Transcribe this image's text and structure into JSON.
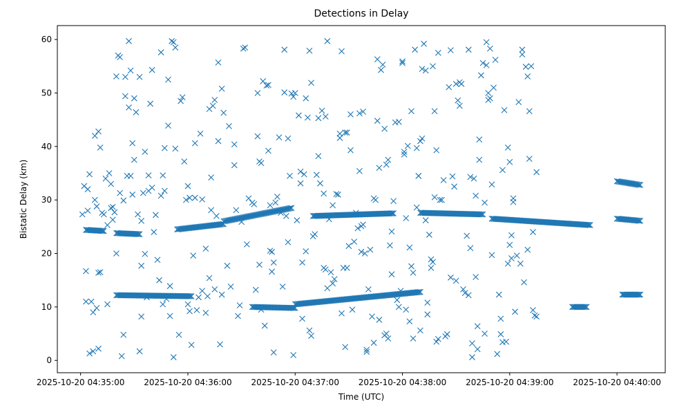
{
  "chart_data": {
    "type": "scatter",
    "title": "Detections in Delay",
    "xlabel": "Time (UTC)",
    "ylabel": "Bistatic Delay (km)",
    "x_unit": "seconds after 2025-10-20 04:35:00 UTC",
    "x_ticks": [
      {
        "value": 0,
        "label": "2025-10-20 04:35:00"
      },
      {
        "value": 60,
        "label": "2025-10-20 04:36:00"
      },
      {
        "value": 120,
        "label": "2025-10-20 04:37:00"
      },
      {
        "value": 180,
        "label": "2025-10-20 04:38:00"
      },
      {
        "value": 240,
        "label": "2025-10-20 04:39:00"
      },
      {
        "value": 300,
        "label": "2025-10-20 04:40:00"
      }
    ],
    "y_ticks": [
      0,
      10,
      20,
      30,
      40,
      50,
      60
    ],
    "xlim": [
      -13,
      327
    ],
    "ylim": [
      -2.3,
      62.6
    ],
    "grid": false,
    "marker": "x",
    "color": "#1f77b4",
    "series_bands": {
      "band_a": {
        "x_start": 3,
        "x_end": 13,
        "y_start": 24.4,
        "y_end": 24.2
      },
      "band_b": {
        "x_start": 20,
        "x_end": 33,
        "y_start": 23.8,
        "y_end": 23.6
      },
      "band_c": {
        "x_start": 20,
        "x_end": 62,
        "y_start": 12.2,
        "y_end": 12.0
      },
      "band_d": {
        "x_start": 54,
        "x_end": 80,
        "y_start": 24.5,
        "y_end": 25.5
      },
      "band_e": {
        "x_start": 80,
        "x_end": 118,
        "y_start": 26.0,
        "y_end": 28.5
      },
      "band_f": {
        "x_start": 96,
        "x_end": 120,
        "y_start": 10.0,
        "y_end": 9.8
      },
      "band_g": {
        "x_start": 120,
        "x_end": 190,
        "y_start": 10.5,
        "y_end": 12.8
      },
      "band_h": {
        "x_start": 130,
        "x_end": 175,
        "y_start": 27.0,
        "y_end": 27.5
      },
      "band_i": {
        "x_start": 190,
        "x_end": 225,
        "y_start": 27.6,
        "y_end": 27.3
      },
      "band_j": {
        "x_start": 230,
        "x_end": 285,
        "y_start": 26.5,
        "y_end": 25.3
      },
      "band_k": {
        "x_start": 275,
        "x_end": 283,
        "y_start": 10.0,
        "y_end": 10.0
      },
      "band_l": {
        "x_start": 300,
        "x_end": 313,
        "y_start": 26.5,
        "y_end": 26.1
      },
      "band_m": {
        "x_start": 303,
        "x_end": 313,
        "y_start": 12.3,
        "y_end": 12.3
      },
      "band_n": {
        "x_start": 300,
        "x_end": 313,
        "y_start": 33.5,
        "y_end": 32.8
      }
    },
    "points": [
      [
        1,
        27.3
      ],
      [
        2,
        32.6
      ],
      [
        3,
        16.7
      ],
      [
        3,
        11.0
      ],
      [
        4,
        28.0
      ],
      [
        4,
        32.0
      ],
      [
        5,
        34.8
      ],
      [
        5,
        1.3
      ],
      [
        6,
        11.0
      ],
      [
        7,
        1.7
      ],
      [
        7,
        9.0
      ],
      [
        8,
        42.0
      ],
      [
        8,
        30.0
      ],
      [
        9,
        9.8
      ],
      [
        9,
        28.8
      ],
      [
        10,
        42.8
      ],
      [
        10,
        2.2
      ],
      [
        10,
        16.4
      ],
      [
        11,
        16.5
      ],
      [
        11,
        39.8
      ],
      [
        12,
        27.6
      ],
      [
        13,
        27.3
      ],
      [
        14,
        34.0
      ],
      [
        15,
        25.3
      ],
      [
        15,
        10.5
      ],
      [
        16,
        35.0
      ],
      [
        17,
        33.0
      ],
      [
        17,
        28.5
      ],
      [
        18,
        26.3
      ],
      [
        18,
        28.7
      ],
      [
        19,
        27.7
      ],
      [
        20,
        20.0
      ],
      [
        20,
        53.1
      ],
      [
        21,
        57.0
      ],
      [
        22,
        56.7
      ],
      [
        22,
        31.3
      ],
      [
        23,
        0.8
      ],
      [
        24,
        29.9
      ],
      [
        24,
        4.8
      ],
      [
        25,
        53.0
      ],
      [
        25,
        49.4
      ],
      [
        26,
        34.5
      ],
      [
        27,
        59.7
      ],
      [
        27,
        47.3
      ],
      [
        28,
        34.5
      ],
      [
        28,
        54.2
      ],
      [
        29,
        40.6
      ],
      [
        29,
        31.0
      ],
      [
        30,
        37.5
      ],
      [
        30,
        49.0
      ],
      [
        31,
        46.4
      ],
      [
        32,
        27.3
      ],
      [
        33,
        1.7
      ],
      [
        33,
        53.0
      ],
      [
        34,
        17.7
      ],
      [
        34,
        26.1
      ],
      [
        34,
        8.2
      ],
      [
        35,
        31.3
      ],
      [
        36,
        39.0
      ],
      [
        36,
        19.9
      ],
      [
        37,
        11.8
      ],
      [
        38,
        34.6
      ],
      [
        38,
        31.7
      ],
      [
        39,
        48.0
      ],
      [
        40,
        54.3
      ],
      [
        40,
        32.3
      ],
      [
        41,
        24.0
      ],
      [
        42,
        27.2
      ],
      [
        43,
        18.8
      ],
      [
        44,
        15.0
      ],
      [
        45,
        30.8
      ],
      [
        45,
        57.6
      ],
      [
        46,
        10.5
      ],
      [
        46,
        34.6
      ],
      [
        47,
        39.7
      ],
      [
        47,
        31.7
      ],
      [
        48,
        11.5
      ],
      [
        49,
        52.5
      ],
      [
        49,
        43.9
      ],
      [
        50,
        13.9
      ],
      [
        50,
        8.3
      ],
      [
        51,
        59.7
      ],
      [
        52,
        59.5
      ],
      [
        52,
        0.6
      ],
      [
        53,
        58.5
      ],
      [
        53,
        39.6
      ],
      [
        55,
        4.8
      ],
      [
        56,
        48.5
      ],
      [
        57,
        49.2
      ],
      [
        58,
        37.2
      ],
      [
        59,
        30.0
      ],
      [
        60,
        32.6
      ],
      [
        60,
        10.5
      ],
      [
        61,
        9.2
      ],
      [
        61,
        30.4
      ],
      [
        62,
        2.9
      ],
      [
        63,
        19.6
      ],
      [
        64,
        40.6
      ],
      [
        64,
        30.4
      ],
      [
        65,
        9.4
      ],
      [
        66,
        11.8
      ],
      [
        67,
        42.4
      ],
      [
        68,
        30.1
      ],
      [
        68,
        13.0
      ],
      [
        70,
        8.9
      ],
      [
        70,
        20.9
      ],
      [
        71,
        12.0
      ],
      [
        72,
        47.0
      ],
      [
        72,
        15.4
      ],
      [
        73,
        28.1
      ],
      [
        73,
        34.2
      ],
      [
        74,
        47.6
      ],
      [
        75,
        48.7
      ],
      [
        75,
        13.3
      ],
      [
        76,
        27.0
      ],
      [
        77,
        55.7
      ],
      [
        77,
        41.0
      ],
      [
        78,
        3.0
      ],
      [
        79,
        12.3
      ],
      [
        79,
        50.8
      ],
      [
        80,
        46.3
      ],
      [
        82,
        17.7
      ],
      [
        83,
        43.8
      ],
      [
        84,
        13.8
      ],
      [
        86,
        36.5
      ],
      [
        86,
        40.4
      ],
      [
        87,
        28.1
      ],
      [
        88,
        8.3
      ],
      [
        89,
        10.3
      ],
      [
        90,
        25.9
      ],
      [
        91,
        58.3
      ],
      [
        92,
        58.5
      ],
      [
        93,
        21.7
      ],
      [
        94,
        30.3
      ],
      [
        96,
        29.5
      ],
      [
        97,
        29.2
      ],
      [
        98,
        13.2
      ],
      [
        99,
        41.9
      ],
      [
        99,
        50.0
      ],
      [
        100,
        37.2
      ],
      [
        100,
        17.9
      ],
      [
        101,
        36.9
      ],
      [
        101,
        9.5
      ],
      [
        102,
        52.2
      ],
      [
        103,
        6.5
      ],
      [
        104,
        51.4
      ],
      [
        105,
        51.5
      ],
      [
        105,
        39.2
      ],
      [
        106,
        29.0
      ],
      [
        106,
        20.5
      ],
      [
        107,
        20.3
      ],
      [
        107,
        16.6
      ],
      [
        108,
        18.3
      ],
      [
        108,
        1.5
      ],
      [
        109,
        29.5
      ],
      [
        110,
        30.6
      ],
      [
        111,
        41.7
      ],
      [
        112,
        27.6
      ],
      [
        113,
        13.8
      ],
      [
        114,
        58.1
      ],
      [
        114,
        50.1
      ],
      [
        115,
        27.0
      ],
      [
        116,
        41.5
      ],
      [
        116,
        22.1
      ],
      [
        117,
        34.5
      ],
      [
        118,
        49.9
      ],
      [
        119,
        49.3
      ],
      [
        119,
        1.0
      ],
      [
        120,
        50.0
      ],
      [
        121,
        26.2
      ],
      [
        122,
        45.8
      ],
      [
        123,
        35.3
      ],
      [
        123,
        33.1
      ],
      [
        124,
        18.3
      ],
      [
        124,
        7.8
      ],
      [
        125,
        34.8
      ],
      [
        126,
        49.0
      ],
      [
        126,
        20.4
      ],
      [
        127,
        45.4
      ],
      [
        128,
        57.9
      ],
      [
        128,
        5.6
      ],
      [
        129,
        4.6
      ],
      [
        129,
        51.9
      ],
      [
        130,
        23.2
      ],
      [
        131,
        23.6
      ],
      [
        132,
        34.7
      ],
      [
        133,
        45.3
      ],
      [
        133,
        38.2
      ],
      [
        134,
        33.1
      ],
      [
        135,
        46.7
      ],
      [
        136,
        31.2
      ],
      [
        136,
        17.3
      ],
      [
        137,
        45.6
      ],
      [
        137,
        17.0
      ],
      [
        138,
        59.7
      ],
      [
        138,
        13.5
      ],
      [
        139,
        26.4
      ],
      [
        140,
        16.5
      ],
      [
        141,
        14.4
      ],
      [
        141,
        29.0
      ],
      [
        142,
        15.2
      ],
      [
        143,
        31.1
      ],
      [
        144,
        31.0
      ],
      [
        145,
        41.6
      ],
      [
        145,
        42.4
      ],
      [
        146,
        57.8
      ],
      [
        146,
        8.8
      ],
      [
        147,
        17.3
      ],
      [
        148,
        42.6
      ],
      [
        148,
        2.5
      ],
      [
        149,
        17.3
      ],
      [
        149,
        42.6
      ],
      [
        150,
        21.4
      ],
      [
        151,
        46.0
      ],
      [
        151,
        39.3
      ],
      [
        152,
        9.5
      ],
      [
        153,
        22.2
      ],
      [
        154,
        27.6
      ],
      [
        155,
        24.7
      ],
      [
        156,
        35.4
      ],
      [
        156,
        46.2
      ],
      [
        157,
        20.3
      ],
      [
        157,
        25.1
      ],
      [
        158,
        25.4
      ],
      [
        158,
        46.5
      ],
      [
        159,
        20.0
      ],
      [
        160,
        2.0
      ],
      [
        160,
        1.6
      ],
      [
        161,
        13.3
      ],
      [
        162,
        20.7
      ],
      [
        163,
        8.2
      ],
      [
        164,
        30.3
      ],
      [
        164,
        3.3
      ],
      [
        165,
        30.0
      ],
      [
        166,
        44.8
      ],
      [
        166,
        56.3
      ],
      [
        167,
        7.6
      ],
      [
        167,
        36.0
      ],
      [
        168,
        54.3
      ],
      [
        169,
        55.3
      ],
      [
        170,
        43.3
      ],
      [
        170,
        4.7
      ],
      [
        171,
        36.6
      ],
      [
        171,
        5.0
      ],
      [
        172,
        4.1
      ],
      [
        172,
        37.5
      ],
      [
        173,
        21.5
      ],
      [
        174,
        24.1
      ],
      [
        174,
        16.1
      ],
      [
        175,
        29.8
      ],
      [
        176,
        44.5
      ],
      [
        177,
        11.3
      ],
      [
        178,
        10.0
      ],
      [
        178,
        44.6
      ],
      [
        179,
        13.0
      ],
      [
        180,
        55.6
      ],
      [
        180,
        55.9
      ],
      [
        181,
        39.0
      ],
      [
        181,
        38.5
      ],
      [
        182,
        26.6
      ],
      [
        182,
        9.5
      ],
      [
        183,
        40.1
      ],
      [
        184,
        21.1
      ],
      [
        184,
        7.3
      ],
      [
        185,
        46.6
      ],
      [
        185,
        17.6
      ],
      [
        186,
        16.4
      ],
      [
        186,
        4.1
      ],
      [
        187,
        58.1
      ],
      [
        188,
        39.7
      ],
      [
        188,
        28.6
      ],
      [
        189,
        34.5
      ],
      [
        189,
        34.5
      ],
      [
        190,
        41.0
      ],
      [
        190,
        5.6
      ],
      [
        191,
        54.5
      ],
      [
        191,
        41.5
      ],
      [
        192,
        59.2
      ],
      [
        193,
        54.2
      ],
      [
        193,
        26.2
      ],
      [
        194,
        8.6
      ],
      [
        194,
        10.8
      ],
      [
        195,
        23.5
      ],
      [
        196,
        18.9
      ],
      [
        196,
        17.3
      ],
      [
        197,
        18.4
      ],
      [
        197,
        55.0
      ],
      [
        198,
        46.6
      ],
      [
        198,
        30.5
      ],
      [
        199,
        39.3
      ],
      [
        199,
        3.5
      ],
      [
        200,
        57.5
      ],
      [
        200,
        4.0
      ],
      [
        201,
        30.0
      ],
      [
        202,
        30.0
      ],
      [
        203,
        33.7
      ],
      [
        204,
        4.5
      ],
      [
        205,
        4.9
      ],
      [
        206,
        51.1
      ],
      [
        207,
        58.0
      ],
      [
        207,
        15.5
      ],
      [
        208,
        34.4
      ],
      [
        209,
        32.5
      ],
      [
        210,
        51.7
      ],
      [
        210,
        14.9
      ],
      [
        211,
        48.6
      ],
      [
        212,
        52.0
      ],
      [
        212,
        47.6
      ],
      [
        213,
        51.7
      ],
      [
        214,
        13.3
      ],
      [
        215,
        12.6
      ],
      [
        216,
        23.3
      ],
      [
        217,
        58.1
      ],
      [
        217,
        12.2
      ],
      [
        218,
        21.0
      ],
      [
        218,
        34.3
      ],
      [
        219,
        3.2
      ],
      [
        219,
        0.6
      ],
      [
        220,
        34.0
      ],
      [
        221,
        30.8
      ],
      [
        221,
        15.6
      ],
      [
        222,
        2.1
      ],
      [
        222,
        6.4
      ],
      [
        223,
        41.3
      ],
      [
        223,
        37.5
      ],
      [
        224,
        53.3
      ],
      [
        225,
        55.6
      ],
      [
        226,
        29.5
      ],
      [
        226,
        5.0
      ],
      [
        227,
        55.2
      ],
      [
        227,
        59.5
      ],
      [
        228,
        48.7
      ],
      [
        228,
        50.0
      ],
      [
        229,
        58.3
      ],
      [
        229,
        49.0
      ],
      [
        230,
        19.7
      ],
      [
        230,
        32.9
      ],
      [
        231,
        51.0
      ],
      [
        232,
        56.2
      ],
      [
        233,
        1.2
      ],
      [
        234,
        12.3
      ],
      [
        235,
        4.9
      ],
      [
        235,
        7.8
      ],
      [
        236,
        35.6
      ],
      [
        236,
        3.4
      ],
      [
        237,
        46.8
      ],
      [
        238,
        3.5
      ],
      [
        239,
        39.8
      ],
      [
        239,
        18.1
      ],
      [
        240,
        21.6
      ],
      [
        240,
        37.1
      ],
      [
        241,
        23.4
      ],
      [
        241,
        19.1
      ],
      [
        242,
        30.3
      ],
      [
        242,
        29.6
      ],
      [
        243,
        9.1
      ],
      [
        244,
        19.6
      ],
      [
        245,
        48.3
      ],
      [
        246,
        18.1
      ],
      [
        247,
        58.1
      ],
      [
        247,
        57.2
      ],
      [
        248,
        14.6
      ],
      [
        249,
        54.9
      ],
      [
        250,
        53.1
      ],
      [
        250,
        20.7
      ],
      [
        251,
        46.6
      ],
      [
        251,
        37.7
      ],
      [
        252,
        55.0
      ],
      [
        253,
        24.0
      ],
      [
        253,
        9.4
      ],
      [
        254,
        8.4
      ],
      [
        255,
        35.2
      ],
      [
        255,
        8.2
      ]
    ]
  }
}
